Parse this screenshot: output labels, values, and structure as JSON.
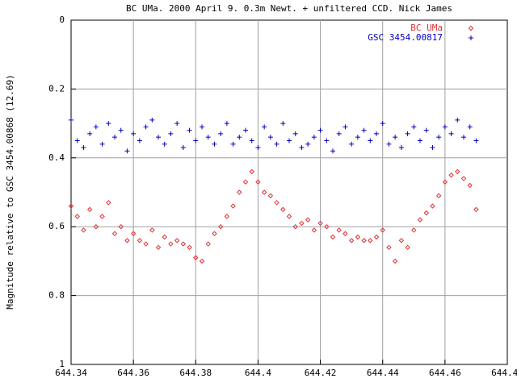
{
  "chart_data": {
    "type": "scatter",
    "title": "BC UMa. 2000 April 9. 0.3m Newt. + unfiltered CCD.   Nick James",
    "y_label": "Magnitude relative to GSC 3454.00868 (12.69)",
    "xlim": [
      644.34,
      644.48
    ],
    "xticks": [
      644.34,
      644.36,
      644.38,
      644.4,
      644.42,
      644.44,
      644.46,
      644.48
    ],
    "ylim": [
      0,
      1
    ],
    "yticks": [
      0,
      0.2,
      0.4,
      0.6,
      0.8,
      1
    ],
    "y_reversed": true,
    "grid": true,
    "legend": "top-right",
    "x": [
      644.34,
      644.342,
      644.344,
      644.346,
      644.348,
      644.35,
      644.352,
      644.354,
      644.356,
      644.358,
      644.36,
      644.362,
      644.364,
      644.366,
      644.368,
      644.37,
      644.372,
      644.374,
      644.376,
      644.378,
      644.38,
      644.382,
      644.384,
      644.386,
      644.388,
      644.39,
      644.392,
      644.394,
      644.396,
      644.398,
      644.4,
      644.402,
      644.404,
      644.406,
      644.408,
      644.41,
      644.412,
      644.414,
      644.416,
      644.418,
      644.42,
      644.422,
      644.424,
      644.426,
      644.428,
      644.43,
      644.432,
      644.434,
      644.436,
      644.438,
      644.44,
      644.442,
      644.444,
      644.446,
      644.448,
      644.45,
      644.452,
      644.454,
      644.456,
      644.458,
      644.46,
      644.462,
      644.464,
      644.466,
      644.468,
      644.47
    ],
    "series": [
      {
        "name": "BC UMa",
        "color": "#e03030",
        "marker": "diamond",
        "values": [
          0.54,
          0.57,
          0.61,
          0.55,
          0.6,
          0.57,
          0.53,
          0.62,
          0.6,
          0.64,
          0.62,
          0.64,
          0.65,
          0.61,
          0.66,
          0.63,
          0.65,
          0.64,
          0.65,
          0.66,
          0.69,
          0.7,
          0.65,
          0.62,
          0.6,
          0.57,
          0.54,
          0.5,
          0.47,
          0.44,
          0.47,
          0.5,
          0.51,
          0.53,
          0.55,
          0.57,
          0.6,
          0.59,
          0.58,
          0.61,
          0.59,
          0.6,
          0.63,
          0.61,
          0.62,
          0.64,
          0.63,
          0.64,
          0.64,
          0.63,
          0.61,
          0.66,
          0.7,
          0.64,
          0.66,
          0.61,
          0.58,
          0.56,
          0.54,
          0.51,
          0.47,
          0.45,
          0.44,
          0.46,
          0.48,
          0.55
        ]
      },
      {
        "name": "GSC 3454.00817",
        "color": "#0000c0",
        "marker": "plus",
        "values": [
          0.29,
          0.35,
          0.37,
          0.33,
          0.31,
          0.36,
          0.3,
          0.34,
          0.32,
          0.38,
          0.33,
          0.35,
          0.31,
          0.29,
          0.34,
          0.36,
          0.33,
          0.3,
          0.37,
          0.32,
          0.35,
          0.31,
          0.34,
          0.36,
          0.33,
          0.3,
          0.36,
          0.34,
          0.32,
          0.35,
          0.37,
          0.31,
          0.34,
          0.36,
          0.3,
          0.35,
          0.33,
          0.37,
          0.36,
          0.34,
          0.32,
          0.35,
          0.38,
          0.33,
          0.31,
          0.36,
          0.34,
          0.32,
          0.35,
          0.33,
          0.3,
          0.36,
          0.34,
          0.37,
          0.33,
          0.31,
          0.35,
          0.32,
          0.37,
          0.34,
          0.31,
          0.33,
          0.29,
          0.34,
          0.31,
          0.35
        ]
      }
    ]
  }
}
